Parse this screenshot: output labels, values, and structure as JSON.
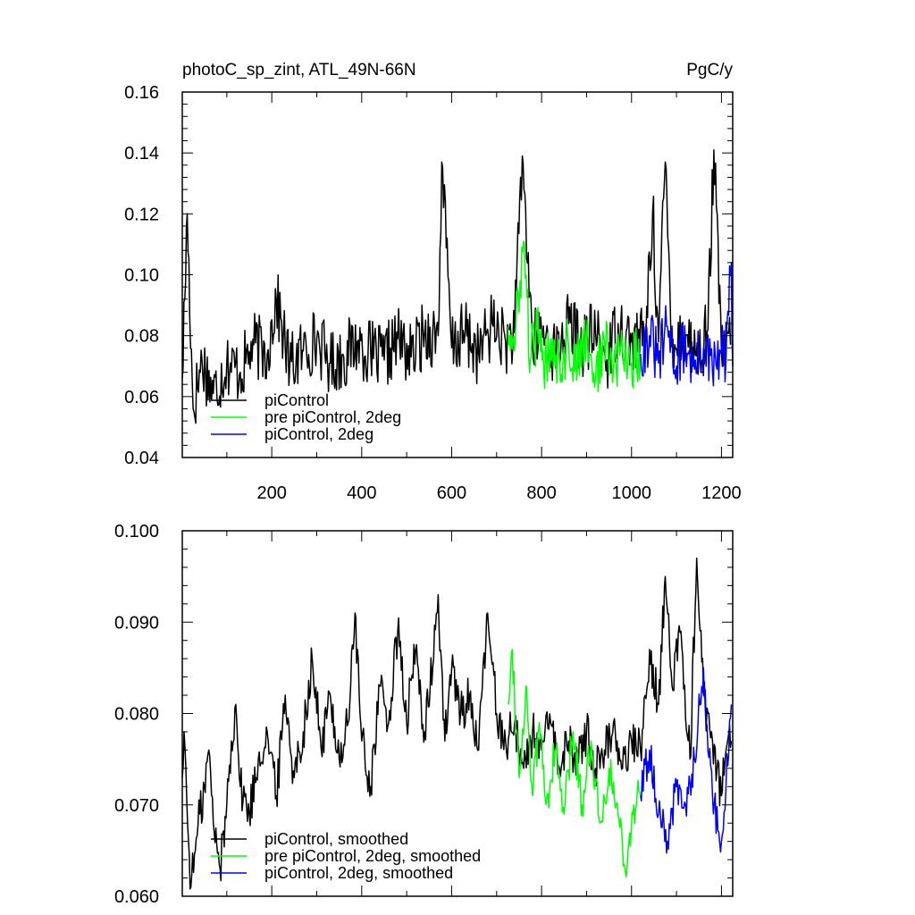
{
  "chart_data": [
    {
      "type": "line",
      "title_left": "photoC_sp_zint, ATL_49N-66N",
      "title_right": "PgC/y",
      "xlabel": "",
      "ylabel": "",
      "xlim": [
        1,
        1225
      ],
      "ylim": [
        0.04,
        0.16
      ],
      "x_ticks": [
        200,
        400,
        600,
        800,
        1000,
        1200
      ],
      "x_tick_labels": [
        "200",
        "400",
        "600",
        "800",
        "1000",
        "1200"
      ],
      "y_ticks": [
        0.04,
        0.06,
        0.08,
        0.1,
        0.12,
        0.14,
        0.16
      ],
      "y_tick_labels": [
        "0.04",
        "0.06",
        "0.08",
        "0.10",
        "0.12",
        "0.14",
        "0.16"
      ],
      "legend_position": "bottom-left",
      "series": [
        {
          "name": "piControl",
          "color": "#000000",
          "points": [
            [
              1,
              0.066
            ],
            [
              12,
              0.12
            ],
            [
              25,
              0.056
            ],
            [
              45,
              0.072
            ],
            [
              70,
              0.061
            ],
            [
              100,
              0.071
            ],
            [
              130,
              0.068
            ],
            [
              160,
              0.077
            ],
            [
              190,
              0.074
            ],
            [
              210,
              0.092
            ],
            [
              240,
              0.07
            ],
            [
              270,
              0.075
            ],
            [
              300,
              0.079
            ],
            [
              330,
              0.071
            ],
            [
              360,
              0.073
            ],
            [
              390,
              0.078
            ],
            [
              420,
              0.074
            ],
            [
              450,
              0.072
            ],
            [
              480,
              0.079
            ],
            [
              510,
              0.073
            ],
            [
              540,
              0.081
            ],
            [
              570,
              0.08
            ],
            [
              578,
              0.137
            ],
            [
              600,
              0.076
            ],
            [
              630,
              0.081
            ],
            [
              660,
              0.074
            ],
            [
              690,
              0.084
            ],
            [
              720,
              0.078
            ],
            [
              740,
              0.081
            ],
            [
              757,
              0.139
            ],
            [
              780,
              0.077
            ],
            [
              800,
              0.082
            ],
            [
              830,
              0.074
            ],
            [
              860,
              0.084
            ],
            [
              890,
              0.077
            ],
            [
              920,
              0.081
            ],
            [
              945,
              0.072
            ],
            [
              970,
              0.084
            ],
            [
              1000,
              0.078
            ],
            [
              1030,
              0.079
            ],
            [
              1047,
              0.121
            ],
            [
              1060,
              0.078
            ],
            [
              1075,
              0.137
            ],
            [
              1090,
              0.079
            ],
            [
              1120,
              0.08
            ],
            [
              1150,
              0.073
            ],
            [
              1170,
              0.082
            ],
            [
              1183,
              0.141
            ],
            [
              1200,
              0.074
            ],
            [
              1220,
              0.077
            ]
          ]
        },
        {
          "name": "pre piControl, 2deg",
          "color": "#00ff00",
          "points": [
            [
              725,
              0.083
            ],
            [
              740,
              0.075
            ],
            [
              752,
              0.098
            ],
            [
              760,
              0.111
            ],
            [
              775,
              0.072
            ],
            [
              790,
              0.082
            ],
            [
              805,
              0.068
            ],
            [
              820,
              0.079
            ],
            [
              840,
              0.072
            ],
            [
              860,
              0.077
            ],
            [
              880,
              0.07
            ],
            [
              900,
              0.081
            ],
            [
              920,
              0.066
            ],
            [
              940,
              0.078
            ],
            [
              960,
              0.069
            ],
            [
              980,
              0.075
            ],
            [
              1000,
              0.071
            ],
            [
              1020,
              0.074
            ]
          ]
        },
        {
          "name": "piControl, 2deg",
          "color": "#0000ff",
          "points": [
            [
              1020,
              0.074
            ],
            [
              1040,
              0.08
            ],
            [
              1060,
              0.071
            ],
            [
              1080,
              0.083
            ],
            [
              1100,
              0.07
            ],
            [
              1120,
              0.078
            ],
            [
              1140,
              0.069
            ],
            [
              1160,
              0.076
            ],
            [
              1180,
              0.068
            ],
            [
              1200,
              0.075
            ],
            [
              1210,
              0.072
            ],
            [
              1222,
              0.104
            ],
            [
              1225,
              0.07
            ]
          ]
        }
      ]
    },
    {
      "type": "line",
      "xlim": [
        1,
        1225
      ],
      "ylim": [
        0.06,
        0.1
      ],
      "x_ticks": [
        200,
        400,
        600,
        800,
        1000,
        1200
      ],
      "y_ticks": [
        0.06,
        0.07,
        0.08,
        0.09,
        0.1
      ],
      "y_tick_labels": [
        "0.060",
        "0.070",
        "0.080",
        "0.090",
        "0.100"
      ],
      "legend_position": "bottom-left",
      "series": [
        {
          "name": "piControl, smoothed",
          "color": "#000000",
          "points": [
            [
              1,
              0.073
            ],
            [
              5,
              0.078
            ],
            [
              15,
              0.066
            ],
            [
              20,
              0.061
            ],
            [
              30,
              0.065
            ],
            [
              40,
              0.069
            ],
            [
              50,
              0.072
            ],
            [
              60,
              0.076
            ],
            [
              70,
              0.068
            ],
            [
              85,
              0.063
            ],
            [
              100,
              0.07
            ],
            [
              110,
              0.077
            ],
            [
              120,
              0.081
            ],
            [
              130,
              0.072
            ],
            [
              150,
              0.069
            ],
            [
              170,
              0.075
            ],
            [
              190,
              0.078
            ],
            [
              210,
              0.071
            ],
            [
              230,
              0.082
            ],
            [
              250,
              0.073
            ],
            [
              270,
              0.078
            ],
            [
              290,
              0.086
            ],
            [
              310,
              0.076
            ],
            [
              330,
              0.082
            ],
            [
              350,
              0.075
            ],
            [
              370,
              0.079
            ],
            [
              385,
              0.091
            ],
            [
              400,
              0.077
            ],
            [
              420,
              0.072
            ],
            [
              440,
              0.083
            ],
            [
              460,
              0.079
            ],
            [
              480,
              0.089
            ],
            [
              500,
              0.079
            ],
            [
              520,
              0.087
            ],
            [
              540,
              0.078
            ],
            [
              560,
              0.086
            ],
            [
              570,
              0.093
            ],
            [
              585,
              0.077
            ],
            [
              600,
              0.085
            ],
            [
              620,
              0.08
            ],
            [
              640,
              0.082
            ],
            [
              660,
              0.076
            ],
            [
              680,
              0.091
            ],
            [
              700,
              0.08
            ],
            [
              720,
              0.077
            ],
            [
              740,
              0.079
            ],
            [
              760,
              0.074
            ],
            [
              780,
              0.078
            ],
            [
              800,
              0.076
            ],
            [
              820,
              0.079
            ],
            [
              840,
              0.074
            ],
            [
              860,
              0.077
            ],
            [
              880,
              0.075
            ],
            [
              900,
              0.078
            ],
            [
              920,
              0.074
            ],
            [
              940,
              0.076
            ],
            [
              960,
              0.079
            ],
            [
              980,
              0.074
            ],
            [
              1000,
              0.077
            ],
            [
              1020,
              0.076
            ],
            [
              1040,
              0.087
            ],
            [
              1060,
              0.081
            ],
            [
              1075,
              0.095
            ],
            [
              1090,
              0.083
            ],
            [
              1110,
              0.089
            ],
            [
              1130,
              0.075
            ],
            [
              1145,
              0.097
            ],
            [
              1160,
              0.082
            ],
            [
              1180,
              0.077
            ],
            [
              1200,
              0.071
            ],
            [
              1210,
              0.076
            ],
            [
              1222,
              0.077
            ]
          ]
        },
        {
          "name": "pre piControl, 2deg, smoothed",
          "color": "#00ff00",
          "points": [
            [
              725,
              0.081
            ],
            [
              735,
              0.087
            ],
            [
              750,
              0.073
            ],
            [
              765,
              0.083
            ],
            [
              780,
              0.071
            ],
            [
              795,
              0.079
            ],
            [
              810,
              0.07
            ],
            [
              830,
              0.076
            ],
            [
              850,
              0.069
            ],
            [
              870,
              0.078
            ],
            [
              890,
              0.07
            ],
            [
              910,
              0.077
            ],
            [
              930,
              0.068
            ],
            [
              950,
              0.074
            ],
            [
              970,
              0.069
            ],
            [
              990,
              0.063
            ],
            [
              1005,
              0.07
            ],
            [
              1020,
              0.071
            ]
          ]
        },
        {
          "name": "piControl, 2deg, smoothed",
          "color": "#0000ff",
          "points": [
            [
              1020,
              0.071
            ],
            [
              1040,
              0.076
            ],
            [
              1060,
              0.069
            ],
            [
              1080,
              0.066
            ],
            [
              1100,
              0.072
            ],
            [
              1120,
              0.07
            ],
            [
              1140,
              0.075
            ],
            [
              1160,
              0.085
            ],
            [
              1180,
              0.071
            ],
            [
              1200,
              0.066
            ],
            [
              1210,
              0.072
            ],
            [
              1222,
              0.081
            ]
          ]
        }
      ]
    }
  ]
}
